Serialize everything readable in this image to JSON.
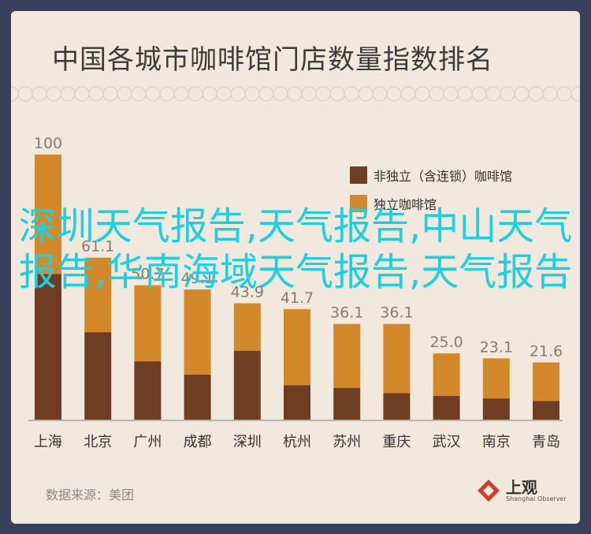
{
  "title": "中国各城市咖啡馆门店数量指数排名",
  "source_label": "数据来源：美团",
  "logo": {
    "cn": "上观",
    "en": "Shanghai Observer"
  },
  "watermark_text": "深圳天气报告,天气报告,中山天气报告,华南海域天气报告,天气报告",
  "colors": {
    "bg": "#3a3f5c",
    "card": "#f1e8de",
    "dark": "#6e3d22",
    "light": "#d3892a"
  },
  "chart_data": {
    "type": "bar",
    "stacked": true,
    "categories": [
      "上海",
      "北京",
      "广州",
      "成都",
      "深圳",
      "杭州",
      "苏州",
      "重庆",
      "武汉",
      "南京",
      "青岛"
    ],
    "series": [
      {
        "name": "非独立（含连锁）咖啡馆",
        "values": [
          55,
          33,
          22,
          17,
          26,
          13,
          12,
          10,
          9,
          8,
          7
        ],
        "color": "#6e3d22"
      },
      {
        "name": "独立咖啡馆",
        "values": [
          45,
          28.1,
          28.7,
          32.1,
          17.9,
          28.7,
          24.1,
          26.1,
          16.0,
          15.1,
          14.6
        ],
        "color": "#d3892a"
      }
    ],
    "totals": [
      "100",
      "61.1",
      "50.7",
      "49.1",
      "43.9",
      "41.7",
      "36.1",
      "36.1",
      "25.0",
      "23.1",
      "21.6"
    ],
    "ylim": [
      0,
      100
    ],
    "legend_position": "top-right"
  }
}
